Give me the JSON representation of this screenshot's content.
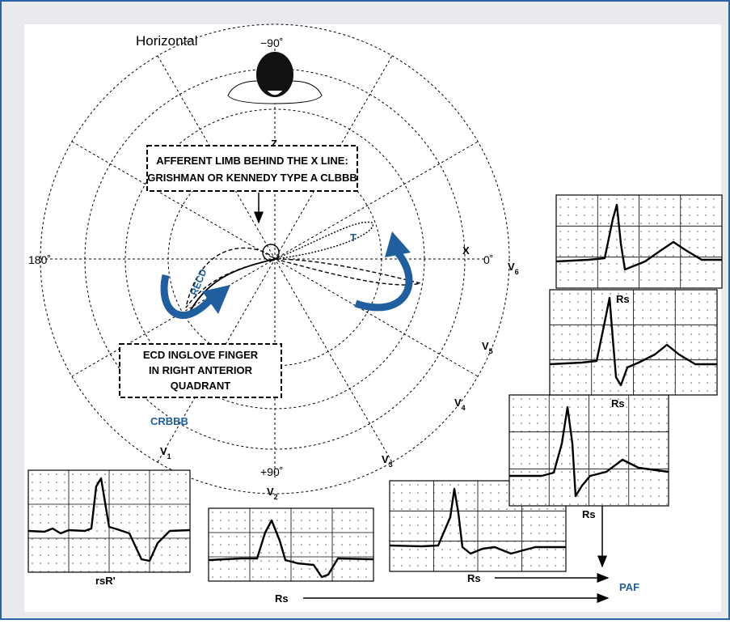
{
  "title": "Horizontal",
  "angles": {
    "top": "−90˚",
    "left": "180˚",
    "right": "0˚",
    "bottom": "+90˚"
  },
  "axes": {
    "z": "Z",
    "x": "X"
  },
  "loop_labels": {
    "t": "T",
    "recd": "RECD",
    "crbbb": "CRBBB"
  },
  "callouts": [
    {
      "lines": [
        "AFFERENT LIMB BEHIND THE X LINE:",
        "GRISHMAN OR KENNEDY TYPE A CLBBB"
      ]
    },
    {
      "lines": [
        "ECD INGLOVE FINGER",
        "IN RIGHT ANTERIOR",
        "QUADRANT"
      ]
    }
  ],
  "leads": [
    {
      "letter": "V",
      "sub": "1"
    },
    {
      "letter": "V",
      "sub": "2"
    },
    {
      "letter": "V",
      "sub": "3"
    },
    {
      "letter": "V",
      "sub": "4"
    },
    {
      "letter": "V",
      "sub": "5"
    },
    {
      "letter": "V",
      "sub": "6"
    }
  ],
  "ecg_labels": {
    "v1": "rsR'",
    "v4": "Rs",
    "v5": "Rs",
    "v6": "Rs"
  },
  "arrow_labels": {
    "v3": "Rs",
    "v2": "Rs",
    "target": "PAF"
  }
}
